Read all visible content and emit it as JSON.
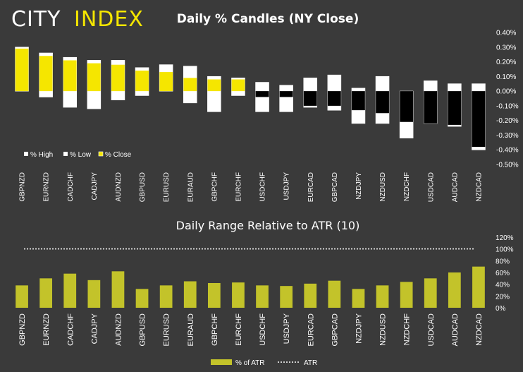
{
  "logo": {
    "word1": "CITY",
    "word2": "INDEX"
  },
  "colors": {
    "background": "#3a3a3a",
    "close_bar": "#f5e600",
    "range_bar": "#c3c32a",
    "negative_close": "#000000",
    "outline": "#ffffff"
  },
  "chart_data": [
    {
      "type": "bar",
      "title": "Daily % Candles (NY Close)",
      "categories": [
        "GBPNZD",
        "EURNZD",
        "CADCHF",
        "CADJPY",
        "AUDNZD",
        "GBPUSD",
        "EURUSD",
        "EURAUD",
        "GBPCHF",
        "EURCHF",
        "USDCHF",
        "USDJPY",
        "EURCAD",
        "GBPCAD",
        "NZDJPY",
        "NZDUSD",
        "NZDCHF",
        "USDCAD",
        "AUDCAD",
        "NZDCAD"
      ],
      "series": [
        {
          "name": "% High",
          "values": [
            0.3,
            0.26,
            0.23,
            0.21,
            0.21,
            0.16,
            0.18,
            0.17,
            0.1,
            0.09,
            0.06,
            0.04,
            0.09,
            0.11,
            0.02,
            0.1,
            0.0,
            0.07,
            0.05,
            0.05
          ]
        },
        {
          "name": "% Low",
          "values": [
            0.0,
            -0.04,
            -0.11,
            -0.12,
            -0.06,
            -0.03,
            0.0,
            -0.08,
            -0.14,
            -0.03,
            -0.14,
            -0.14,
            -0.11,
            -0.13,
            -0.22,
            -0.22,
            -0.32,
            -0.22,
            -0.24,
            -0.4
          ]
        },
        {
          "name": "% Close",
          "values": [
            0.29,
            0.24,
            0.21,
            0.19,
            0.18,
            0.14,
            0.13,
            0.09,
            0.08,
            0.08,
            -0.04,
            -0.04,
            -0.1,
            -0.1,
            -0.13,
            -0.15,
            -0.21,
            -0.22,
            -0.23,
            -0.38
          ]
        }
      ],
      "ylim": [
        -0.5,
        0.4
      ],
      "yticks": [
        "0.40%",
        "0.30%",
        "0.20%",
        "0.10%",
        "0.00%",
        "-0.10%",
        "-0.20%",
        "-0.30%",
        "-0.40%",
        "-0.50%"
      ],
      "legend": [
        "% High",
        "% Low",
        "% Close"
      ]
    },
    {
      "type": "bar",
      "title": "Daily Range Relative to ATR (10)",
      "categories": [
        "GBPNZD",
        "EURNZD",
        "CADCHF",
        "CADJPY",
        "AUDNZD",
        "GBPUSD",
        "EURUSD",
        "EURAUD",
        "GBPCHF",
        "EURCHF",
        "USDCHF",
        "USDJPY",
        "EURCAD",
        "GBPCAD",
        "NZDJPY",
        "NZDUSD",
        "NZDCHF",
        "USDCAD",
        "AUDCAD",
        "NZDCAD"
      ],
      "series": [
        {
          "name": "% of ATR",
          "values": [
            38,
            50,
            58,
            47,
            62,
            32,
            38,
            45,
            42,
            43,
            38,
            37,
            41,
            46,
            32,
            38,
            44,
            50,
            60,
            70
          ]
        }
      ],
      "atr_line": 100,
      "ylim": [
        0,
        120
      ],
      "yticks": [
        "120%",
        "100%",
        "80%",
        "60%",
        "40%",
        "20%",
        "0%"
      ],
      "legend": [
        "% of ATR",
        "ATR"
      ]
    }
  ]
}
